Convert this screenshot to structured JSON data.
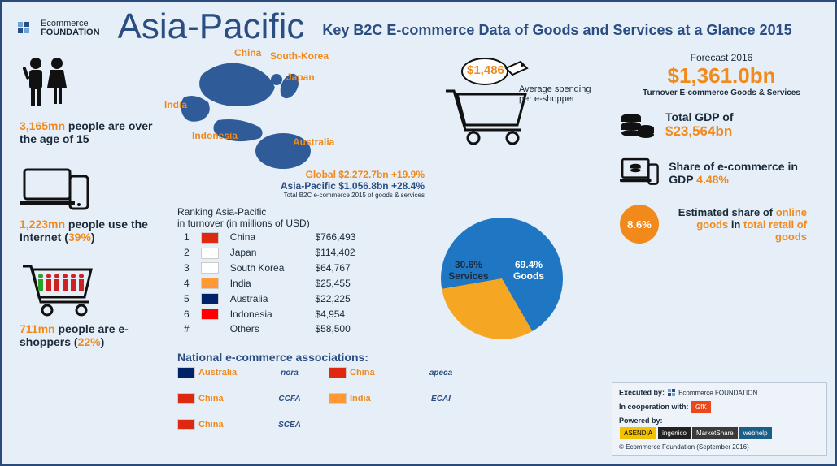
{
  "logo": {
    "top": "Ecommerce",
    "bottom": "FOUNDATION"
  },
  "title": "Asia-Pacific",
  "subtitle": "Key B2C E-commerce Data of Goods and Services at a Glance 2015",
  "colors": {
    "orange": "#f18a1b",
    "navy": "#2b4e82",
    "dark": "#1a2a3a",
    "map": "#2f5c99",
    "pie_goods": "#1f77c4",
    "pie_services": "#f5a623",
    "bg": "#e6eef7"
  },
  "left_stats": {
    "age15": {
      "value": "3,165mn",
      "text": " people are over the age of 15"
    },
    "internet": {
      "value": "1,223mn",
      "text_pre": " people use the Internet (",
      "pct": "39%",
      "text_post": ")"
    },
    "eshoppers": {
      "value": "711mn",
      "text_pre": " people are e-shoppers (",
      "pct": "22%",
      "text_post": ")"
    }
  },
  "map_labels": {
    "china": "China",
    "skorea": "South-Korea",
    "japan": "Japan",
    "india": "India",
    "indonesia": "Indonesia",
    "australia": "Australia"
  },
  "global_line": {
    "label": "Global ",
    "value": "$2,272.7bn",
    "growth": " +19.9%"
  },
  "apac_line": {
    "label": "Asia-Pacific ",
    "value": "$1,056.8bn",
    "growth": " +28.4%"
  },
  "turnover_caption": "Total B2C e-commerce 2015 of goods & services",
  "ranking": {
    "title": "Ranking Asia-Pacific",
    "subtitle": "in turnover (in millions of USD)",
    "rows": [
      {
        "rank": "1",
        "country": "China",
        "value": "$766,493",
        "flag_bg": "#de2910"
      },
      {
        "rank": "2",
        "country": "Japan",
        "value": "$114,402",
        "flag_bg": "#ffffff"
      },
      {
        "rank": "3",
        "country": "South Korea",
        "value": "$64,767",
        "flag_bg": "#ffffff"
      },
      {
        "rank": "4",
        "country": "India",
        "value": "$25,455",
        "flag_bg": "#ff9933"
      },
      {
        "rank": "5",
        "country": "Australia",
        "value": "$22,225",
        "flag_bg": "#012169"
      },
      {
        "rank": "6",
        "country": "Indonesia",
        "value": "$4,954",
        "flag_bg": "#ff0000"
      },
      {
        "rank": "#",
        "country": "Others",
        "value": "$58,500",
        "flag_bg": ""
      }
    ]
  },
  "pie": {
    "goods_pct": 69.4,
    "services_pct": 30.6,
    "goods_label": "69.4% Goods",
    "services_label": "30.6% Services",
    "goods_color": "#1f77c4",
    "services_color": "#f5a623"
  },
  "avg_spend": {
    "value": "$1,486",
    "label": "Average spending per e-shopper"
  },
  "forecast": {
    "heading": "Forecast 2016",
    "value": "$1,361.0bn",
    "caption": "Turnover E-commerce Goods & Services"
  },
  "gdp": {
    "label": "Total GDP of",
    "value": "$23,564bn"
  },
  "share_gdp": {
    "label": "Share of e-commerce in GDP ",
    "value": "4.48%"
  },
  "online_goods": {
    "circle": "8.6%",
    "text_a": "Estimated share of ",
    "text_b": "online goods",
    "text_c": " in ",
    "text_d": "total retail of goods"
  },
  "associations": {
    "title": "National e-commerce associations:",
    "items": [
      {
        "country": "Australia",
        "flag": "#012169"
      },
      {
        "country": "China",
        "flag": "#de2910"
      },
      {
        "country": "China",
        "flag": "#de2910"
      },
      {
        "country": "China",
        "flag": "#de2910"
      },
      {
        "country": "India",
        "flag": "#ff9933"
      }
    ],
    "logos": [
      "nora",
      "apeca",
      "CCFA",
      "ECAI",
      "SCEA"
    ]
  },
  "footer": {
    "executed": "Executed by:",
    "cooperation": "In cooperation with:",
    "powered": "Powered by:",
    "partners": [
      "ASENDIA",
      "ingenico",
      "MarketShare",
      "webhelp"
    ],
    "copyright": "© Ecommerce Foundation (September 2016)"
  }
}
